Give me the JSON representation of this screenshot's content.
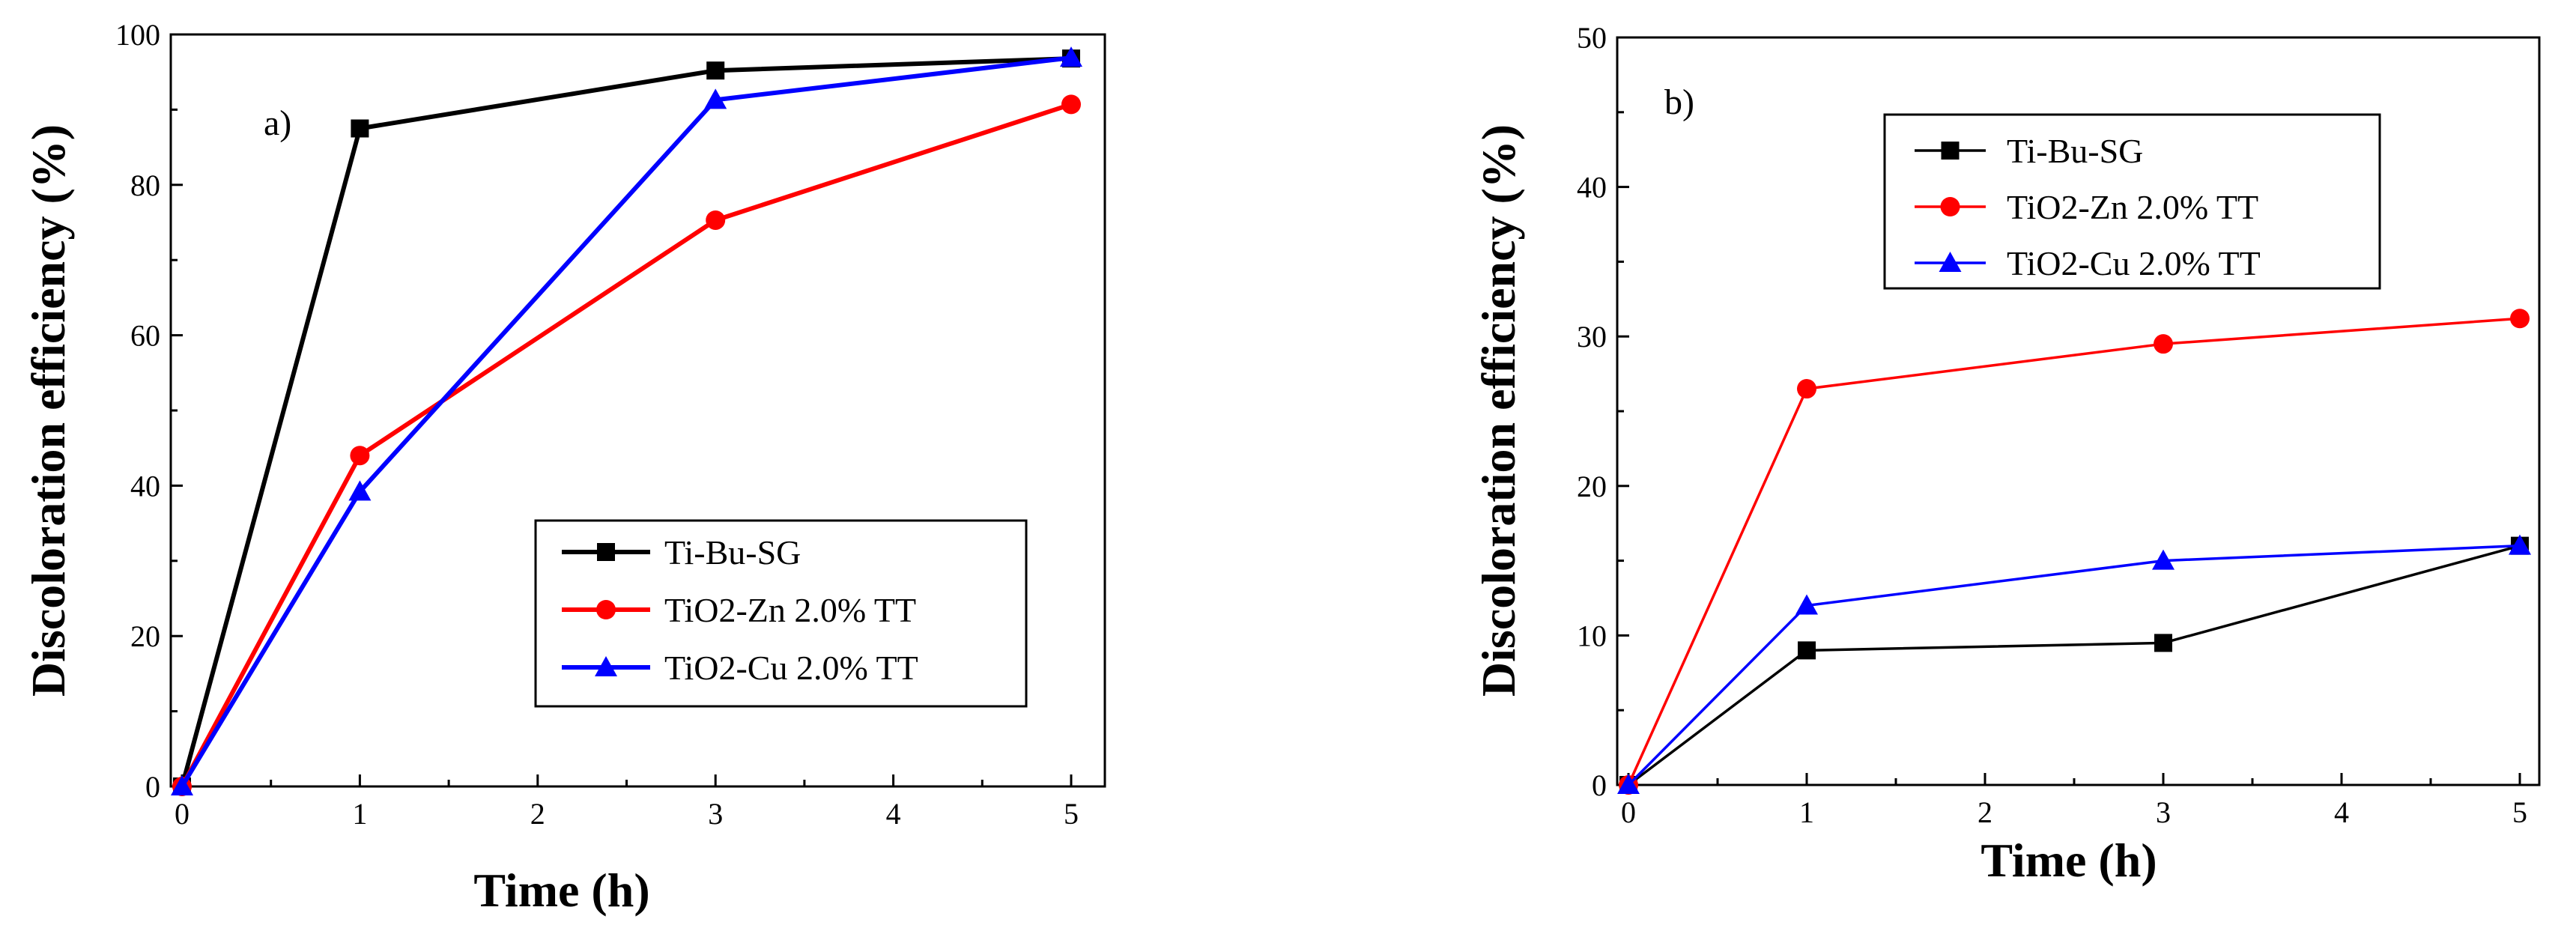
{
  "chart_data": [
    {
      "type": "line",
      "panel_label": "a)",
      "xlabel": "Time (h)",
      "ylabel": "Discoloration efficiency (%)",
      "xlim": [
        0,
        5
      ],
      "ylim": [
        0,
        100
      ],
      "xticks": [
        0,
        1,
        2,
        3,
        4,
        5
      ],
      "yticks": [
        0,
        20,
        40,
        60,
        80,
        100
      ],
      "legend_position": "bottom-right",
      "series": [
        {
          "name": "Ti-Bu-SG",
          "color": "#000000",
          "marker": "square",
          "x": [
            0,
            1,
            3,
            5
          ],
          "y": [
            0,
            87.5,
            95.2,
            96.8
          ]
        },
        {
          "name": "TiO2-Zn 2.0% TT",
          "color": "#ff0000",
          "marker": "circle",
          "x": [
            0,
            1,
            3,
            5
          ],
          "y": [
            0,
            44,
            75.3,
            90.7
          ]
        },
        {
          "name": "TiO2-Cu 2.0% TT",
          "color": "#0000ff",
          "marker": "triangle",
          "x": [
            0,
            1,
            3,
            5
          ],
          "y": [
            0,
            39.2,
            91.3,
            96.9
          ]
        }
      ]
    },
    {
      "type": "line",
      "panel_label": "b)",
      "xlabel": "Time (h)",
      "ylabel": "Discoloration efficiency (%)",
      "xlim": [
        0,
        5
      ],
      "ylim": [
        0,
        50
      ],
      "xticks": [
        0,
        1,
        2,
        3,
        4,
        5
      ],
      "yticks": [
        0,
        10,
        20,
        30,
        40,
        50
      ],
      "legend_position": "top-left",
      "series": [
        {
          "name": "Ti-Bu-SG",
          "color": "#000000",
          "marker": "square",
          "x": [
            0,
            1,
            3,
            5
          ],
          "y": [
            0,
            9,
            9.5,
            16
          ]
        },
        {
          "name": "TiO2-Zn 2.0% TT",
          "color": "#ff0000",
          "marker": "circle",
          "x": [
            0,
            1,
            3,
            5
          ],
          "y": [
            0,
            26.5,
            29.5,
            31.2
          ]
        },
        {
          "name": "TiO2-Cu 2.0% TT",
          "color": "#0000ff",
          "marker": "triangle",
          "x": [
            0,
            1,
            3,
            5
          ],
          "y": [
            0,
            12,
            15,
            16
          ]
        }
      ]
    }
  ]
}
